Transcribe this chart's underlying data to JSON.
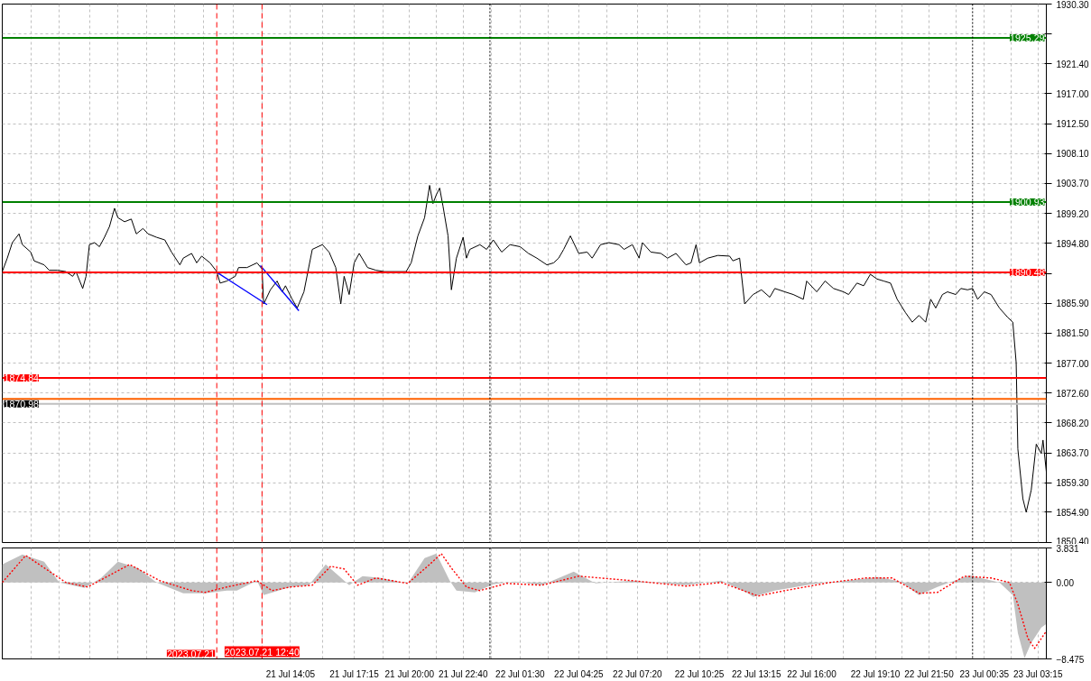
{
  "chart_data": [
    {
      "type": "line",
      "tick_labels": "y",
      "grid": true,
      "xlim": [
        "2023-07-20T23:45",
        "2023-07-23T03:40"
      ],
      "ylim": [
        1850.4,
        1930.3
      ],
      "xticks": [
        {
          "value": "2023-07-21T01:10",
          "label": null
        },
        {
          "value": "2023-07-21T02:35",
          "label": null
        },
        {
          "value": "2023-07-21T04:05",
          "label": null
        },
        {
          "value": "2023-07-21T05:30",
          "label": null
        },
        {
          "value": "2023-07-21T06:55",
          "label": null
        },
        {
          "value": "2023-07-21T08:20",
          "label": null
        },
        {
          "value": "2023-07-21T09:45",
          "label": null
        },
        {
          "value": "2023-07-21T11:15",
          "label": null
        },
        {
          "value": "2023-07-21T12:40",
          "label": null
        },
        {
          "value": "2023-07-21T14:05",
          "label": null
        },
        {
          "value": "2023-07-21T15:40",
          "label": null
        },
        {
          "value": "2023-07-21T17:15",
          "label": null
        },
        {
          "value": "2023-07-21T18:40",
          "label": null
        },
        {
          "value": "2023-07-21T20:00",
          "label": null
        },
        {
          "value": "2023-07-21T21:20",
          "label": null
        },
        {
          "value": "2023-07-21T22:40",
          "label": null
        },
        {
          "value": "2023-07-22T00:05",
          "label": null
        },
        {
          "value": "2023-07-22T01:30",
          "label": null
        },
        {
          "value": "2023-07-22T02:55",
          "label": null
        },
        {
          "value": "2023-07-22T04:25",
          "label": null
        },
        {
          "value": "2023-07-22T05:50",
          "label": null
        },
        {
          "value": "2023-07-22T07:20",
          "label": null
        },
        {
          "value": "2023-07-22T08:50",
          "label": null
        },
        {
          "value": "2023-07-22T10:25",
          "label": null
        },
        {
          "value": "2023-07-22T11:50",
          "label": null
        },
        {
          "value": "2023-07-22T13:15",
          "label": null
        },
        {
          "value": "2023-07-22T14:40",
          "label": null
        },
        {
          "value": "2023-07-22T16:00",
          "label": null
        },
        {
          "value": "2023-07-22T17:35",
          "label": null
        },
        {
          "value": "2023-07-22T19:10",
          "label": null
        },
        {
          "value": "2023-07-22T20:30",
          "label": null
        },
        {
          "value": "2023-07-22T21:50",
          "label": null
        },
        {
          "value": "2023-07-22T23:10",
          "label": null
        },
        {
          "value": "2023-07-23T00:35",
          "label": null
        },
        {
          "value": "2023-07-23T01:55",
          "label": null
        },
        {
          "value": "2023-07-23T03:15",
          "label": null
        }
      ],
      "yticks": [
        {
          "value": 1930.3,
          "label": "1930.30"
        },
        {
          "value": 1925.9,
          "label": null
        },
        {
          "value": 1921.4,
          "label": "1921.40"
        },
        {
          "value": 1917.0,
          "label": "1917.00"
        },
        {
          "value": 1912.5,
          "label": "1912.50"
        },
        {
          "value": 1908.1,
          "label": "1908.10"
        },
        {
          "value": 1903.7,
          "label": "1903.70"
        },
        {
          "value": 1899.2,
          "label": "1899.20"
        },
        {
          "value": 1894.8,
          "label": "1894.80"
        },
        {
          "value": 1890.3,
          "label": null
        },
        {
          "value": 1885.9,
          "label": "1885.90"
        },
        {
          "value": 1881.5,
          "label": "1881.50"
        },
        {
          "value": 1877.0,
          "label": "1877.00"
        },
        {
          "value": 1872.6,
          "label": "1872.60"
        },
        {
          "value": 1868.2,
          "label": "1868.20"
        },
        {
          "value": 1863.7,
          "label": "1863.70"
        },
        {
          "value": 1859.3,
          "label": "1859.30"
        },
        {
          "value": 1854.9,
          "label": "1854.90"
        },
        {
          "value": 1850.4,
          "label": "1850.40"
        }
      ],
      "ref_lines": [
        {
          "axis": "y",
          "value": 1925.29,
          "label": "1925.29",
          "color": "#008000"
        },
        {
          "axis": "y",
          "value": 1900.93,
          "label": "1900.93",
          "color": "#008000"
        },
        {
          "axis": "y",
          "value": 1890.48,
          "label": "1890.48",
          "color": "#ff0000"
        },
        {
          "axis": "y",
          "value": 1874.84,
          "label": "1874.84",
          "color": "#ff0000"
        },
        {
          "axis": "y",
          "value": 1871.7,
          "color": "#ff6000"
        },
        {
          "axis": "y",
          "value": 1870.98,
          "label": "1870.98",
          "color": "#c0c0c0"
        },
        {
          "axis": "x",
          "value": "2023-07-21T10:25",
          "color": "#ff0000",
          "line_style": "dashed"
        },
        {
          "axis": "x",
          "value": "2023-07-21T12:40",
          "color": "#ff0000",
          "line_style": "dashed"
        },
        {
          "axis": "x",
          "value": "2023-07-22T00:00",
          "color": "#000000",
          "line_style": "dotted"
        },
        {
          "axis": "x",
          "value": "2023-07-23T00:00",
          "color": "#000000",
          "line_style": "dotted"
        }
      ],
      "series": [
        {
          "color": "#000000",
          "x": [
            "2023-07-20T23:45",
            "2023-07-21T00:00",
            "2023-07-21T00:15",
            "2023-07-21T00:35",
            "2023-07-21T00:45",
            "2023-07-21T01:10",
            "2023-07-21T01:20",
            "2023-07-21T01:50",
            "2023-07-21T02:05",
            "2023-07-21T02:30",
            "2023-07-21T02:55",
            "2023-07-21T03:15",
            "2023-07-21T03:25",
            "2023-07-21T03:45",
            "2023-07-21T03:55",
            "2023-07-21T04:05",
            "2023-07-21T04:20",
            "2023-07-21T04:35",
            "2023-07-21T04:50",
            "2023-07-21T05:05",
            "2023-07-21T05:20",
            "2023-07-21T05:30",
            "2023-07-21T05:50",
            "2023-07-21T06:10",
            "2023-07-21T06:25",
            "2023-07-21T06:45",
            "2023-07-21T07:00",
            "2023-07-21T07:25",
            "2023-07-21T07:50",
            "2023-07-21T08:10",
            "2023-07-21T08:35",
            "2023-07-21T08:45",
            "2023-07-21T09:10",
            "2023-07-21T09:25",
            "2023-07-21T09:40",
            "2023-07-21T10:05",
            "2023-07-21T10:25",
            "2023-07-21T10:35",
            "2023-07-21T10:55",
            "2023-07-21T11:20",
            "2023-07-21T11:30",
            "2023-07-21T11:55",
            "2023-07-21T12:25",
            "2023-07-21T12:40",
            "2023-07-21T12:45",
            "2023-07-21T13:05",
            "2023-07-21T13:25",
            "2023-07-21T13:40",
            "2023-07-21T13:50",
            "2023-07-21T14:10",
            "2023-07-21T14:25",
            "2023-07-21T14:45",
            "2023-07-21T15:10",
            "2023-07-21T15:40",
            "2023-07-21T16:00",
            "2023-07-21T16:20",
            "2023-07-21T16:35",
            "2023-07-21T16:45",
            "2023-07-21T17:00",
            "2023-07-21T17:15",
            "2023-07-21T17:30",
            "2023-07-21T17:55",
            "2023-07-21T18:20",
            "2023-07-21T18:45",
            "2023-07-21T19:15",
            "2023-07-21T19:50",
            "2023-07-21T20:05",
            "2023-07-21T20:25",
            "2023-07-21T20:45",
            "2023-07-21T21:00",
            "2023-07-21T21:10",
            "2023-07-21T21:20",
            "2023-07-21T21:30",
            "2023-07-21T21:40",
            "2023-07-21T21:55",
            "2023-07-21T22:05",
            "2023-07-21T22:20",
            "2023-07-21T22:40",
            "2023-07-21T22:50",
            "2023-07-21T23:00",
            "2023-07-21T23:30",
            "2023-07-21T23:50",
            "2023-07-22T00:10",
            "2023-07-22T00:35",
            "2023-07-22T01:00",
            "2023-07-22T01:30",
            "2023-07-22T01:55",
            "2023-07-22T02:20",
            "2023-07-22T02:50",
            "2023-07-22T03:10",
            "2023-07-22T03:25",
            "2023-07-22T03:40",
            "2023-07-22T04:00",
            "2023-07-22T04:25",
            "2023-07-22T04:50",
            "2023-07-22T05:05",
            "2023-07-22T05:30",
            "2023-07-22T05:55",
            "2023-07-22T06:25",
            "2023-07-22T06:40",
            "2023-07-22T07:05",
            "2023-07-22T07:25",
            "2023-07-22T07:35",
            "2023-07-22T08:00",
            "2023-07-22T08:30",
            "2023-07-22T08:50",
            "2023-07-22T09:15",
            "2023-07-22T09:45",
            "2023-07-22T10:00",
            "2023-07-22T10:15",
            "2023-07-22T10:25",
            "2023-07-22T10:50",
            "2023-07-22T11:20",
            "2023-07-22T11:55",
            "2023-07-22T12:05",
            "2023-07-22T12:25",
            "2023-07-22T12:40",
            "2023-07-22T13:05",
            "2023-07-22T13:30",
            "2023-07-22T13:55",
            "2023-07-22T14:10",
            "2023-07-22T14:40",
            "2023-07-22T15:05",
            "2023-07-22T15:35",
            "2023-07-22T15:45",
            "2023-07-22T16:15",
            "2023-07-22T16:40",
            "2023-07-22T17:05",
            "2023-07-22T17:35",
            "2023-07-22T17:50",
            "2023-07-22T18:15",
            "2023-07-22T18:35",
            "2023-07-22T18:55",
            "2023-07-22T19:15",
            "2023-07-22T19:35",
            "2023-07-22T19:55",
            "2023-07-22T20:15",
            "2023-07-22T20:40",
            "2023-07-22T21:00",
            "2023-07-22T21:20",
            "2023-07-22T21:40",
            "2023-07-22T21:55",
            "2023-07-22T22:10",
            "2023-07-22T22:30",
            "2023-07-22T22:45",
            "2023-07-22T23:10",
            "2023-07-22T23:25",
            "2023-07-22T23:45",
            "2023-07-23T00:00",
            "2023-07-23T00:15",
            "2023-07-23T00:35",
            "2023-07-23T00:55",
            "2023-07-23T01:20",
            "2023-07-23T01:45",
            "2023-07-23T02:00",
            "2023-07-23T02:10",
            "2023-07-23T02:15",
            "2023-07-23T02:30",
            "2023-07-23T02:40",
            "2023-07-23T02:55",
            "2023-07-23T03:10",
            "2023-07-23T03:25",
            "2023-07-23T03:30",
            "2023-07-23T03:40"
          ],
          "values": [
            1890.6,
            1892.6,
            1894.9,
            1896.2,
            1894.6,
            1893.5,
            1892.2,
            1891.6,
            1890.8,
            1890.8,
            1890.6,
            1889.9,
            1890.6,
            1888.1,
            1889.9,
            1894.6,
            1894.9,
            1894.3,
            1895.7,
            1897.3,
            1900.0,
            1898.6,
            1898.0,
            1898.4,
            1896.2,
            1897.0,
            1896.2,
            1895.7,
            1895.3,
            1893.5,
            1891.6,
            1892.6,
            1893.3,
            1891.9,
            1892.9,
            1891.9,
            1890.6,
            1888.9,
            1889.2,
            1889.9,
            1891.2,
            1891.2,
            1891.9,
            1891.0,
            1885.8,
            1887.9,
            1889.2,
            1887.6,
            1888.5,
            1886.5,
            1885.2,
            1887.6,
            1893.9,
            1894.6,
            1893.5,
            1891.2,
            1885.8,
            1889.9,
            1887.2,
            1891.9,
            1893.3,
            1891.2,
            1890.8,
            1890.6,
            1890.6,
            1890.6,
            1891.9,
            1895.9,
            1898.6,
            1903.4,
            1900.7,
            1902.0,
            1903.0,
            1900.3,
            1895.9,
            1887.9,
            1892.6,
            1895.7,
            1892.6,
            1893.9,
            1894.6,
            1893.9,
            1895.3,
            1893.5,
            1894.6,
            1894.3,
            1893.3,
            1892.6,
            1891.6,
            1891.9,
            1892.6,
            1893.9,
            1895.9,
            1893.3,
            1893.5,
            1892.6,
            1894.6,
            1894.9,
            1894.6,
            1893.9,
            1894.6,
            1892.6,
            1894.9,
            1893.5,
            1893.3,
            1892.6,
            1893.3,
            1891.6,
            1891.9,
            1894.6,
            1891.9,
            1892.6,
            1893.0,
            1892.9,
            1892.2,
            1892.6,
            1885.8,
            1887.2,
            1887.9,
            1886.8,
            1888.1,
            1887.6,
            1887.2,
            1886.5,
            1889.2,
            1887.6,
            1889.2,
            1888.1,
            1887.6,
            1887.2,
            1888.9,
            1888.5,
            1890.2,
            1889.5,
            1889.2,
            1888.9,
            1886.5,
            1884.5,
            1883.1,
            1884.1,
            1883.1,
            1886.5,
            1885.2,
            1887.2,
            1887.6,
            1887.2,
            1888.1,
            1887.9,
            1888.1,
            1886.5,
            1887.6,
            1887.2,
            1885.2,
            1883.8,
            1883.1,
            1877.1,
            1864.3,
            1856.9,
            1854.9,
            1858.2,
            1865.0,
            1863.6,
            1865.6,
            1860.9
          ]
        },
        {
          "type": "line",
          "color": "#0000ff",
          "x": [
            "2023-07-21T10:25",
            "2023-07-21T12:55"
          ],
          "values": [
            1890.5,
            1885.7
          ]
        },
        {
          "type": "line",
          "color": "#0000ff",
          "x": [
            "2023-07-21T12:35",
            "2023-07-21T14:30"
          ],
          "values": [
            1891.5,
            1884.8
          ]
        }
      ]
    },
    {
      "type": "area",
      "grid": true,
      "xlim": [
        "2023-07-20T23:45",
        "2023-07-23T03:40"
      ],
      "ylim": [
        -8.475,
        3.831
      ],
      "xticks": [
        {
          "value": "2023-07-21T01:10",
          "label": null
        },
        {
          "value": "2023-07-21T02:35",
          "label": null
        },
        {
          "value": "2023-07-21T04:05",
          "label": null
        },
        {
          "value": "2023-07-21T05:30",
          "label": null
        },
        {
          "value": "2023-07-21T06:55",
          "label": null
        },
        {
          "value": "2023-07-21T08:20",
          "label": null
        },
        {
          "value": "2023-07-21T09:45",
          "label": null
        },
        {
          "value": "2023-07-21T11:15",
          "label": null
        },
        {
          "value": "2023-07-21T12:40",
          "label": null
        },
        {
          "value": "2023-07-21T14:05",
          "label": "21 Jul 14:05"
        },
        {
          "value": "2023-07-21T15:40",
          "label": null
        },
        {
          "value": "2023-07-21T17:15",
          "label": "21 Jul 17:15"
        },
        {
          "value": "2023-07-21T18:40",
          "label": null
        },
        {
          "value": "2023-07-21T20:00",
          "label": "21 Jul 20:00"
        },
        {
          "value": "2023-07-21T21:20",
          "label": null
        },
        {
          "value": "2023-07-21T22:40",
          "label": "21 Jul 22:40"
        },
        {
          "value": "2023-07-22T00:05",
          "label": null
        },
        {
          "value": "2023-07-22T01:30",
          "label": "22 Jul 01:30"
        },
        {
          "value": "2023-07-22T02:55",
          "label": null
        },
        {
          "value": "2023-07-22T04:25",
          "label": "22 Jul 04:25"
        },
        {
          "value": "2023-07-22T05:50",
          "label": null
        },
        {
          "value": "2023-07-22T07:20",
          "label": "22 Jul 07:20"
        },
        {
          "value": "2023-07-22T08:50",
          "label": null
        },
        {
          "value": "2023-07-22T10:25",
          "label": "22 Jul 10:25"
        },
        {
          "value": "2023-07-22T11:50",
          "label": null
        },
        {
          "value": "2023-07-22T13:15",
          "label": "22 Jul 13:15"
        },
        {
          "value": "2023-07-22T14:40",
          "label": null
        },
        {
          "value": "2023-07-22T16:00",
          "label": "22 Jul 16:00"
        },
        {
          "value": "2023-07-22T17:35",
          "label": null
        },
        {
          "value": "2023-07-22T19:10",
          "label": "22 Jul 19:10"
        },
        {
          "value": "2023-07-22T20:30",
          "label": null
        },
        {
          "value": "2023-07-22T21:50",
          "label": "22 Jul 21:50"
        },
        {
          "value": "2023-07-22T23:10",
          "label": null
        },
        {
          "value": "2023-07-23T00:35",
          "label": "23 Jul 00:35"
        },
        {
          "value": "2023-07-23T01:55",
          "label": null
        },
        {
          "value": "2023-07-23T03:15",
          "label": "23 Jul 03:15"
        }
      ],
      "yticks": [
        3.831,
        {
          "value": 0,
          "label": "0.00"
        },
        -8.475
      ],
      "ref_lines": [
        {
          "axis": "x",
          "value": "2023-07-21T10:25",
          "label": "2023.07.21",
          "color": "#ff0000",
          "line_style": "dashed"
        },
        {
          "axis": "x",
          "value": "2023-07-21T12:40",
          "label": "2023.07.21 12:40",
          "color": "#ff0000",
          "line_style": "dashed"
        },
        {
          "axis": "x",
          "value": "2023-07-22T00:00",
          "color": "#000000",
          "line_style": "dotted"
        },
        {
          "axis": "x",
          "value": "2023-07-23T00:00",
          "color": "#000000",
          "line_style": "dotted"
        }
      ],
      "series": [
        {
          "color": "#c0c0c0",
          "x": [
            "2023-07-20T23:45",
            "2023-07-21T00:45",
            "2023-07-21T01:50",
            "2023-07-21T02:35",
            "2023-07-21T03:50",
            "2023-07-21T04:40",
            "2023-07-21T05:30",
            "2023-07-21T06:30",
            "2023-07-21T07:25",
            "2023-07-21T08:45",
            "2023-07-21T09:50",
            "2023-07-21T10:55",
            "2023-07-21T11:25",
            "2023-07-21T12:25",
            "2023-07-21T12:45",
            "2023-07-21T14:05",
            "2023-07-21T15:00",
            "2023-07-21T15:50",
            "2023-07-21T16:30",
            "2023-07-21T17:00",
            "2023-07-21T17:40",
            "2023-07-21T18:35",
            "2023-07-21T19:55",
            "2023-07-21T20:45",
            "2023-07-21T21:20",
            "2023-07-21T22:00",
            "2023-07-21T22:20",
            "2023-07-21T23:15",
            "2023-07-22T00:10",
            "2023-07-22T01:15",
            "2023-07-22T02:35",
            "2023-07-22T04:10",
            "2023-07-22T05:15",
            "2023-07-22T07:05",
            "2023-07-22T09:45",
            "2023-07-22T11:30",
            "2023-07-22T12:50",
            "2023-07-22T13:05",
            "2023-07-22T14:10",
            "2023-07-22T16:00",
            "2023-07-22T17:20",
            "2023-07-22T19:20",
            "2023-07-22T20:25",
            "2023-07-22T21:20",
            "2023-07-22T22:15",
            "2023-07-22T23:50",
            "2023-07-23T01:20",
            "2023-07-23T02:00",
            "2023-07-23T02:15",
            "2023-07-23T02:35",
            "2023-07-23T02:55",
            "2023-07-23T03:25",
            "2023-07-23T03:40"
          ],
          "values": [
            2.0,
            3.1,
            2.3,
            0.0,
            -0.6,
            0.5,
            2.3,
            1.6,
            0.0,
            -1.2,
            -1.2,
            -0.9,
            -0.9,
            0.2,
            -1.4,
            -0.5,
            -0.3,
            2.0,
            0.7,
            -0.3,
            0.7,
            0.5,
            -0.1,
            2.7,
            3.2,
            0.2,
            -0.9,
            -1.1,
            -0.2,
            0.1,
            -0.3,
            1.2,
            -0.1,
            0.2,
            -0.3,
            0.2,
            -1.2,
            -1.6,
            -0.9,
            -0.2,
            0.1,
            0.6,
            0.1,
            -1.4,
            -0.5,
            0.8,
            0.0,
            -1.4,
            -5.6,
            -8.4,
            -6.7,
            -5.0,
            -4.6
          ]
        },
        {
          "type": "line",
          "line_style": "dotted",
          "color": "#ff0000",
          "x": [
            "2023-07-20T23:45",
            "2023-07-21T00:55",
            "2023-07-21T02:55",
            "2023-07-21T04:00",
            "2023-07-21T06:05",
            "2023-07-21T07:35",
            "2023-07-21T09:10",
            "2023-07-21T09:50",
            "2023-07-21T10:55",
            "2023-07-21T12:25",
            "2023-07-21T13:10",
            "2023-07-21T14:05",
            "2023-07-21T15:10",
            "2023-07-21T16:05",
            "2023-07-21T16:45",
            "2023-07-21T17:25",
            "2023-07-21T18:20",
            "2023-07-21T19:55",
            "2023-07-21T21:00",
            "2023-07-21T21:35",
            "2023-07-21T22:05",
            "2023-07-21T22:50",
            "2023-07-21T23:30",
            "2023-07-22T00:50",
            "2023-07-22T02:35",
            "2023-07-22T04:25",
            "2023-07-22T07:05",
            "2023-07-22T09:45",
            "2023-07-22T11:30",
            "2023-07-22T13:20",
            "2023-07-22T14:40",
            "2023-07-22T16:55",
            "2023-07-22T18:40",
            "2023-07-22T20:00",
            "2023-07-22T21:20",
            "2023-07-22T22:15",
            "2023-07-22T23:35",
            "2023-07-23T00:55",
            "2023-07-23T01:50",
            "2023-07-23T02:15",
            "2023-07-23T02:45",
            "2023-07-23T03:05",
            "2023-07-23T03:40"
          ],
          "values": [
            0.0,
            3.0,
            0.0,
            -0.5,
            2.0,
            0.2,
            -0.9,
            -1.1,
            -0.5,
            0.2,
            -0.9,
            -0.5,
            -0.3,
            1.8,
            1.5,
            -0.3,
            0.5,
            -0.1,
            2.0,
            3.2,
            1.6,
            -0.5,
            -0.9,
            -0.1,
            -0.3,
            0.7,
            0.2,
            -0.4,
            0.0,
            -1.5,
            -0.9,
            0.0,
            0.5,
            0.5,
            -1.2,
            -1.1,
            0.7,
            0.5,
            0.0,
            -2.4,
            -6.2,
            -7.3,
            -5.4
          ]
        }
      ]
    }
  ]
}
